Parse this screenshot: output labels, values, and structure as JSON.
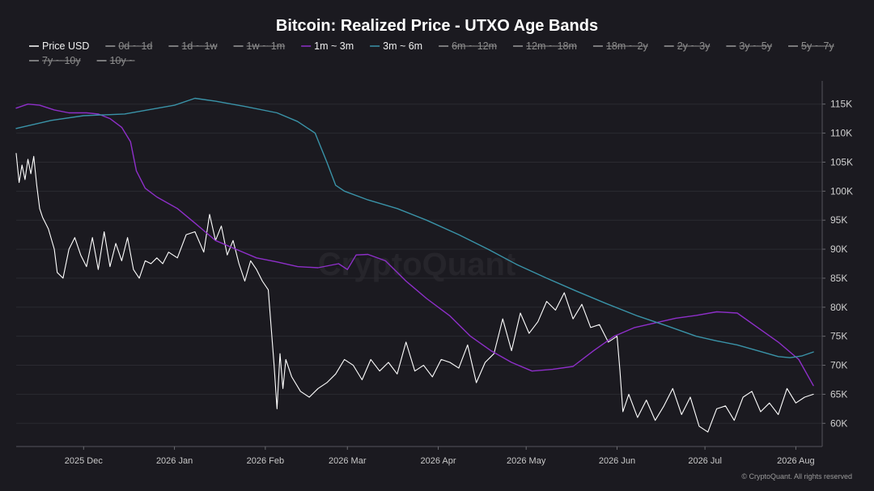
{
  "chart_data": {
    "type": "line",
    "title": "Bitcoin: Realized Price - UTXO Age Bands",
    "watermark": "CryptoQuant",
    "footer": "© CryptoQuant. All rights reserved",
    "legend_placement": "top-left",
    "grid": true,
    "y_scale": "linear",
    "ylim": [
      56000,
      119000
    ],
    "y_ticks": [
      60000,
      65000,
      70000,
      75000,
      80000,
      85000,
      90000,
      95000,
      100000,
      105000,
      110000,
      115000
    ],
    "y_tick_labels": [
      "60K",
      "65K",
      "70K",
      "75K",
      "80K",
      "85K",
      "90K",
      "95K",
      "100K",
      "105K",
      "110K",
      "115K"
    ],
    "xlim": [
      "2025-11-08",
      "2026-08-10"
    ],
    "x_ticks": [
      "2025-12-01",
      "2026-01-01",
      "2026-02-01",
      "2026-03-01",
      "2026-04-01",
      "2026-05-01",
      "2026-06-01",
      "2026-07-01",
      "2026-08-01"
    ],
    "x_tick_labels": [
      "2025 Dec",
      "2026 Jan",
      "2026 Feb",
      "2026 Mar",
      "2026 Apr",
      "2026 May",
      "2026 Jun",
      "2026 Jul",
      "2026 Aug"
    ],
    "legend": [
      {
        "name": "Price USD",
        "color": "#ffffff",
        "hidden": false
      },
      {
        "name": "0d ~ 1d",
        "color": "#9a9a9a",
        "hidden": true
      },
      {
        "name": "1d ~ 1w",
        "color": "#9a9a9a",
        "hidden": true
      },
      {
        "name": "1w ~ 1m",
        "color": "#9a9a9a",
        "hidden": true
      },
      {
        "name": "1m ~ 3m",
        "color": "#8e2fc9",
        "hidden": false
      },
      {
        "name": "3m ~ 6m",
        "color": "#3a93a8",
        "hidden": false
      },
      {
        "name": "6m ~ 12m",
        "color": "#9a9a9a",
        "hidden": true
      },
      {
        "name": "12m ~ 18m",
        "color": "#9a9a9a",
        "hidden": true
      },
      {
        "name": "18m ~ 2y",
        "color": "#9a9a9a",
        "hidden": true
      },
      {
        "name": "2y ~ 3y",
        "color": "#9a9a9a",
        "hidden": true
      },
      {
        "name": "3y ~ 5y",
        "color": "#9a9a9a",
        "hidden": true
      },
      {
        "name": "5y ~ 7y",
        "color": "#9a9a9a",
        "hidden": true
      },
      {
        "name": "7y ~ 10y",
        "color": "#9a9a9a",
        "hidden": true
      },
      {
        "name": "10y ~",
        "color": "#9a9a9a",
        "hidden": true
      }
    ],
    "series": [
      {
        "name": "Price USD",
        "color": "#ffffff",
        "x": [
          "2025-11-08",
          "2025-11-09",
          "2025-11-10",
          "2025-11-11",
          "2025-11-12",
          "2025-11-13",
          "2025-11-14",
          "2025-11-15",
          "2025-11-16",
          "2025-11-17",
          "2025-11-19",
          "2025-11-21",
          "2025-11-22",
          "2025-11-24",
          "2025-11-26",
          "2025-11-28",
          "2025-11-30",
          "2025-12-02",
          "2025-12-04",
          "2025-12-06",
          "2025-12-08",
          "2025-12-10",
          "2025-12-12",
          "2025-12-14",
          "2025-12-16",
          "2025-12-18",
          "2025-12-20",
          "2025-12-22",
          "2025-12-24",
          "2025-12-26",
          "2025-12-28",
          "2025-12-30",
          "2026-01-02",
          "2026-01-05",
          "2026-01-08",
          "2026-01-11",
          "2026-01-13",
          "2026-01-15",
          "2026-01-17",
          "2026-01-19",
          "2026-01-21",
          "2026-01-23",
          "2026-01-25",
          "2026-01-27",
          "2026-01-29",
          "2026-01-31",
          "2026-02-02",
          "2026-02-04",
          "2026-02-05",
          "2026-02-06",
          "2026-02-07",
          "2026-02-08",
          "2026-02-10",
          "2026-02-13",
          "2026-02-16",
          "2026-02-19",
          "2026-02-22",
          "2026-02-25",
          "2026-02-28",
          "2026-03-03",
          "2026-03-06",
          "2026-03-09",
          "2026-03-12",
          "2026-03-15",
          "2026-03-18",
          "2026-03-21",
          "2026-03-24",
          "2026-03-27",
          "2026-03-30",
          "2026-04-02",
          "2026-04-05",
          "2026-04-08",
          "2026-04-11",
          "2026-04-14",
          "2026-04-17",
          "2026-04-20",
          "2026-04-23",
          "2026-04-26",
          "2026-04-29",
          "2026-05-02",
          "2026-05-05",
          "2026-05-08",
          "2026-05-11",
          "2026-05-14",
          "2026-05-17",
          "2026-05-20",
          "2026-05-23",
          "2026-05-26",
          "2026-05-29",
          "2026-06-01",
          "2026-06-02",
          "2026-06-03",
          "2026-06-05",
          "2026-06-08",
          "2026-06-11",
          "2026-06-14",
          "2026-06-17",
          "2026-06-20",
          "2026-06-23",
          "2026-06-26",
          "2026-06-29",
          "2026-07-02",
          "2026-07-05",
          "2026-07-08",
          "2026-07-11",
          "2026-07-14",
          "2026-07-17",
          "2026-07-20",
          "2026-07-23",
          "2026-07-26",
          "2026-07-29",
          "2026-08-01",
          "2026-08-04",
          "2026-08-07"
        ],
        "y": [
          106500,
          101500,
          104500,
          102000,
          105500,
          103000,
          106000,
          101000,
          97000,
          95500,
          93500,
          90000,
          86000,
          85000,
          90000,
          92000,
          89000,
          87000,
          92000,
          86500,
          93000,
          87000,
          91000,
          88000,
          92000,
          86500,
          85000,
          88000,
          87500,
          88500,
          87500,
          89500,
          88500,
          92500,
          93000,
          89500,
          96000,
          91500,
          94000,
          89000,
          91500,
          87500,
          84500,
          88000,
          86500,
          84500,
          83000,
          70000,
          62500,
          72000,
          66000,
          71000,
          68000,
          65500,
          64500,
          66000,
          67000,
          68500,
          71000,
          70000,
          67500,
          71000,
          69000,
          70500,
          68500,
          74000,
          69000,
          70000,
          68000,
          71000,
          70500,
          69500,
          73500,
          67000,
          70500,
          72000,
          78000,
          72500,
          79000,
          75500,
          77500,
          81000,
          79500,
          82500,
          78000,
          80500,
          76500,
          77000,
          74000,
          75000,
          69000,
          62000,
          65000,
          61000,
          64000,
          60500,
          63000,
          66000,
          61500,
          64500,
          59500,
          58500,
          62500,
          63000,
          60500,
          64500,
          65500,
          62000,
          63500,
          61500,
          66000,
          63500,
          64500,
          65000
        ]
      },
      {
        "name": "1m ~ 3m",
        "color": "#8e2fc9",
        "x": [
          "2025-11-08",
          "2025-11-12",
          "2025-11-16",
          "2025-11-21",
          "2025-11-26",
          "2025-12-02",
          "2025-12-06",
          "2025-12-10",
          "2025-12-14",
          "2025-12-17",
          "2025-12-19",
          "2025-12-22",
          "2025-12-26",
          "2026-01-02",
          "2026-01-08",
          "2026-01-15",
          "2026-01-22",
          "2026-01-29",
          "2026-02-05",
          "2026-02-12",
          "2026-02-19",
          "2026-02-26",
          "2026-03-01",
          "2026-03-04",
          "2026-03-08",
          "2026-03-14",
          "2026-03-21",
          "2026-03-28",
          "2026-04-05",
          "2026-04-12",
          "2026-04-19",
          "2026-04-26",
          "2026-05-03",
          "2026-05-10",
          "2026-05-17",
          "2026-05-24",
          "2026-05-31",
          "2026-06-07",
          "2026-06-14",
          "2026-06-21",
          "2026-06-28",
          "2026-07-05",
          "2026-07-12",
          "2026-07-19",
          "2026-07-26",
          "2026-08-02",
          "2026-08-07"
        ],
        "y": [
          114300,
          115000,
          114800,
          114000,
          113500,
          113500,
          113300,
          112500,
          111000,
          108500,
          103500,
          100500,
          99000,
          97000,
          94500,
          91500,
          90000,
          88500,
          87800,
          87000,
          86800,
          87500,
          86500,
          89000,
          89100,
          88000,
          84500,
          81500,
          78500,
          75000,
          72500,
          70500,
          69000,
          69300,
          69800,
          72500,
          75000,
          76500,
          77300,
          78100,
          78600,
          79200,
          79000,
          76500,
          74000,
          71000,
          66500
        ]
      },
      {
        "name": "3m ~ 6m",
        "color": "#3a93a8",
        "x": [
          "2025-11-08",
          "2025-11-20",
          "2025-12-01",
          "2025-12-15",
          "2026-01-01",
          "2026-01-08",
          "2026-01-15",
          "2026-01-25",
          "2026-02-05",
          "2026-02-12",
          "2026-02-18",
          "2026-02-22",
          "2026-02-25",
          "2026-02-28",
          "2026-03-08",
          "2026-03-18",
          "2026-03-28",
          "2026-04-08",
          "2026-04-18",
          "2026-04-28",
          "2026-05-08",
          "2026-05-18",
          "2026-05-28",
          "2026-06-08",
          "2026-06-18",
          "2026-06-28",
          "2026-07-05",
          "2026-07-12",
          "2026-07-19",
          "2026-07-26",
          "2026-07-30",
          "2026-08-03",
          "2026-08-07"
        ],
        "y": [
          110800,
          112200,
          113000,
          113300,
          114800,
          116000,
          115500,
          114600,
          113500,
          112000,
          110000,
          105000,
          101000,
          100000,
          98500,
          97000,
          95000,
          92500,
          90000,
          87300,
          85000,
          82800,
          80700,
          78500,
          76800,
          75000,
          74200,
          73500,
          72500,
          71500,
          71300,
          71600,
          72300
        ]
      }
    ]
  }
}
